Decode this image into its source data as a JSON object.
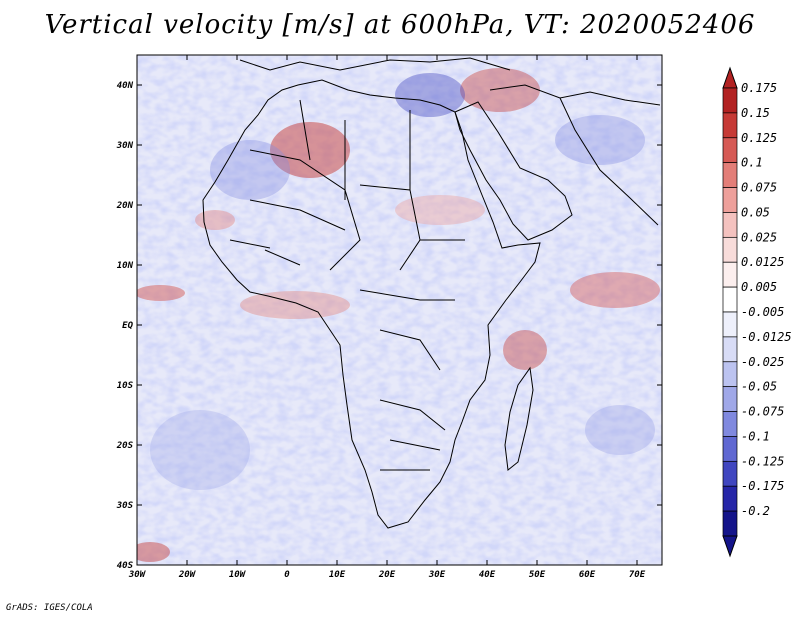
{
  "title": "Vertical velocity [m/s] at 600hPa, VT: 2020052406",
  "credit": "GrADS: IGES/COLA",
  "map": {
    "lat_labels": [
      "40N",
      "30N",
      "20N",
      "10N",
      "EQ",
      "10S",
      "20S",
      "30S",
      "40S"
    ],
    "lon_labels": [
      "30W",
      "20W",
      "10W",
      "0",
      "10E",
      "20E",
      "30E",
      "40E",
      "50E",
      "60E",
      "70E"
    ]
  },
  "colorbar": {
    "labels": [
      "0.175",
      "0.15",
      "0.125",
      "0.1",
      "0.075",
      "0.05",
      "0.025",
      "0.0125",
      "0.005",
      "-0.005",
      "-0.0125",
      "-0.025",
      "-0.05",
      "-0.075",
      "-0.1",
      "-0.125",
      "-0.175",
      "-0.2"
    ],
    "colors": [
      "#b22222",
      "#c63a36",
      "#d65a55",
      "#e37e78",
      "#eea09b",
      "#f4c2bf",
      "#f8dcda",
      "#fcefee",
      "#ffffff",
      "#eef0fb",
      "#d8dcf6",
      "#bcc3f0",
      "#a0a8e8",
      "#8089df",
      "#6068d2",
      "#4046c0",
      "#2626a8",
      "#14148a"
    ]
  }
}
